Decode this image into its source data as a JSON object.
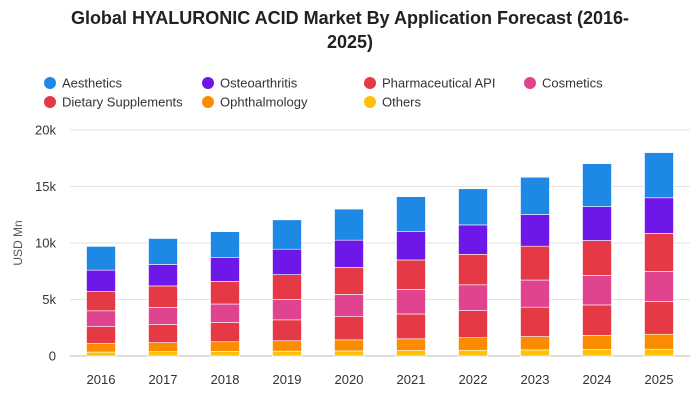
{
  "chart_data": {
    "type": "bar",
    "stacked": true,
    "title_lines": [
      "Global HYALURONIC ACID Market By Application Forecast (2016-",
      "2025)"
    ],
    "xlabel": "",
    "ylabel": "USD Mn",
    "ylim": [
      0,
      20000
    ],
    "y_ticks": [
      0,
      5000,
      10000,
      15000,
      20000
    ],
    "y_tick_labels": [
      "0",
      "5k",
      "10k",
      "15k",
      "20k"
    ],
    "grid": true,
    "legend_position": "top",
    "categories": [
      "2016",
      "2017",
      "2018",
      "2019",
      "2020",
      "2021",
      "2022",
      "2023",
      "2024",
      "2025"
    ],
    "series": [
      {
        "name": "Others",
        "color": "#ffc107",
        "values": [
          350,
          380,
          400,
          430,
          450,
          480,
          510,
          540,
          570,
          600
        ]
      },
      {
        "name": "Ophthalmology",
        "color": "#fb8c00",
        "values": [
          750,
          800,
          860,
          920,
          980,
          1040,
          1110,
          1180,
          1250,
          1330
        ]
      },
      {
        "name": "Dietary Supplements",
        "color": "#e53945",
        "values": [
          1500,
          1620,
          1700,
          1850,
          2050,
          2200,
          2400,
          2600,
          2700,
          2900
        ]
      },
      {
        "name": "Cosmetics",
        "color": "#e0448f",
        "values": [
          1400,
          1500,
          1640,
          1800,
          1970,
          2180,
          2280,
          2400,
          2600,
          2650
        ]
      },
      {
        "name": "Pharmaceutical API",
        "color": "#e53945",
        "values": [
          1700,
          1900,
          2000,
          2200,
          2400,
          2600,
          2700,
          3000,
          3100,
          3370
        ]
      },
      {
        "name": "Osteoarthritis",
        "color": "#6d17e8",
        "values": [
          1900,
          1900,
          2100,
          2250,
          2400,
          2500,
          2600,
          2800,
          3000,
          3150
        ]
      },
      {
        "name": "Aesthetics",
        "color": "#1e88e5",
        "values": [
          2100,
          2300,
          2300,
          2600,
          2750,
          3100,
          3200,
          3300,
          3800,
          4000
        ]
      }
    ],
    "legend_order": [
      "Aesthetics",
      "Osteoarthritis",
      "Pharmaceutical API",
      "Cosmetics",
      "Dietary Supplements",
      "Ophthalmology",
      "Others"
    ]
  }
}
